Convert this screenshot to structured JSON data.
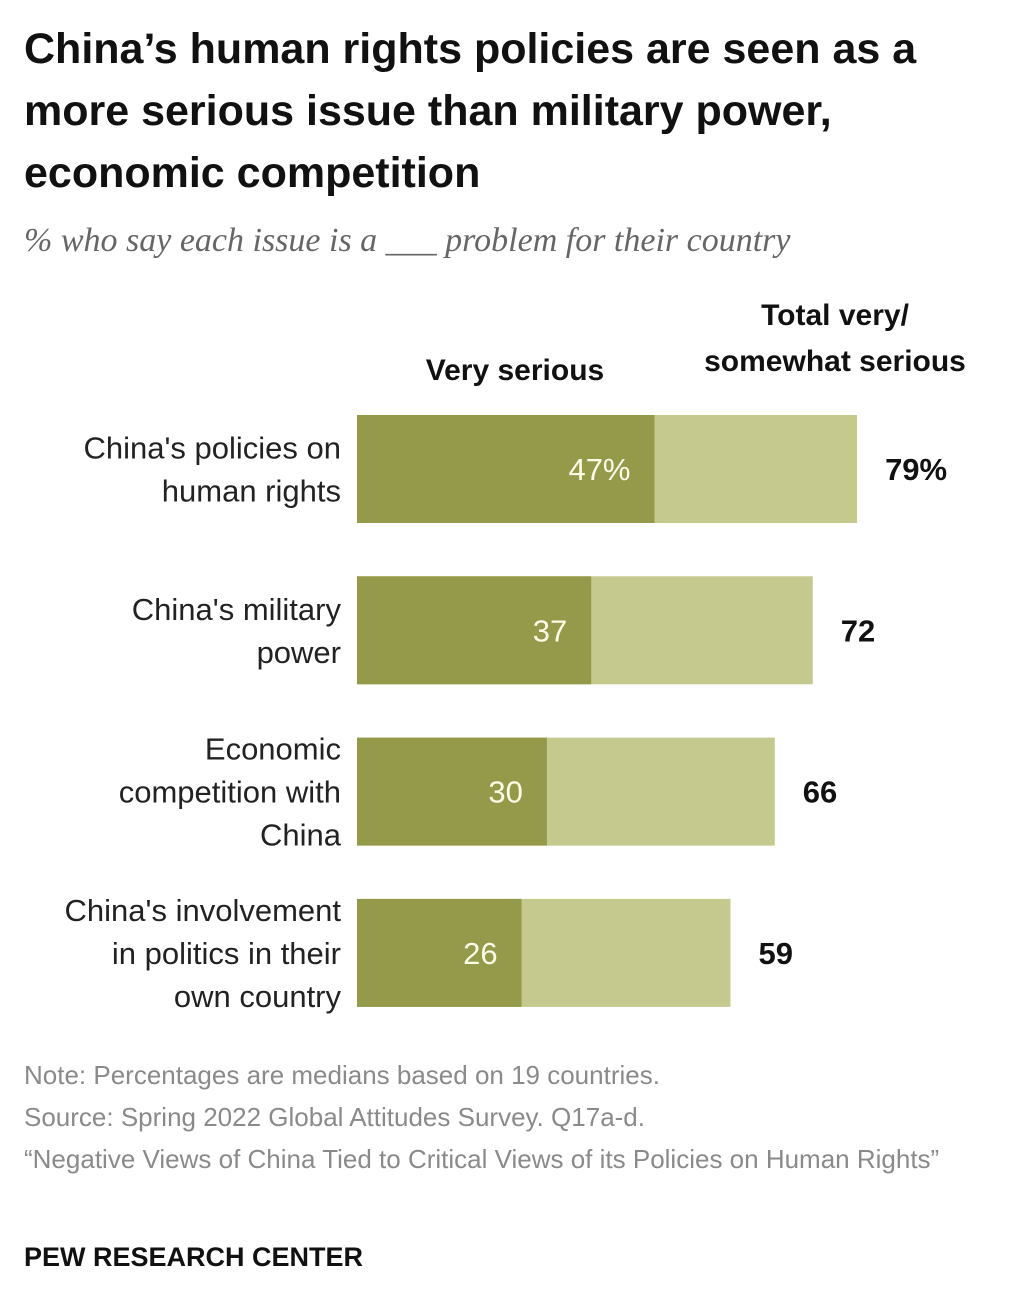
{
  "title": "China’s human rights policies are seen as a more serious issue than military power, economic competition",
  "subtitle": "% who say each issue is a ___ problem for their country",
  "colors": {
    "very_serious": "#949a4a",
    "somewhat_serious": "#c5c98e"
  },
  "chart_data": {
    "type": "bar",
    "orientation": "horizontal",
    "stacked": true,
    "categories": [
      [
        "China's policies on",
        "human rights"
      ],
      [
        "China's military",
        "power"
      ],
      [
        "Economic",
        "competition with",
        "China"
      ],
      [
        "China's involvement",
        "in politics in their",
        "own country"
      ]
    ],
    "series": [
      {
        "name": "Very serious",
        "values": [
          47,
          37,
          30,
          26
        ],
        "labels": [
          "47%",
          "37",
          "30",
          "26"
        ]
      }
    ],
    "totals": {
      "name": "Total very/ somewhat serious",
      "values": [
        79,
        72,
        66,
        59
      ],
      "labels": [
        "79%",
        "72",
        "66",
        "59"
      ]
    },
    "header_very": "Very serious",
    "header_total": [
      "Total very/",
      "somewhat serious"
    ],
    "xlim": [
      0,
      100
    ],
    "grid": false
  },
  "notes": [
    "Note: Percentages are medians based on 19 countries.",
    "Source: Spring 2022 Global Attitudes Survey. Q17a-d.",
    "“Negative Views of China Tied to Critical Views of its Policies on Human Rights”"
  ],
  "brand": "PEW RESEARCH CENTER"
}
